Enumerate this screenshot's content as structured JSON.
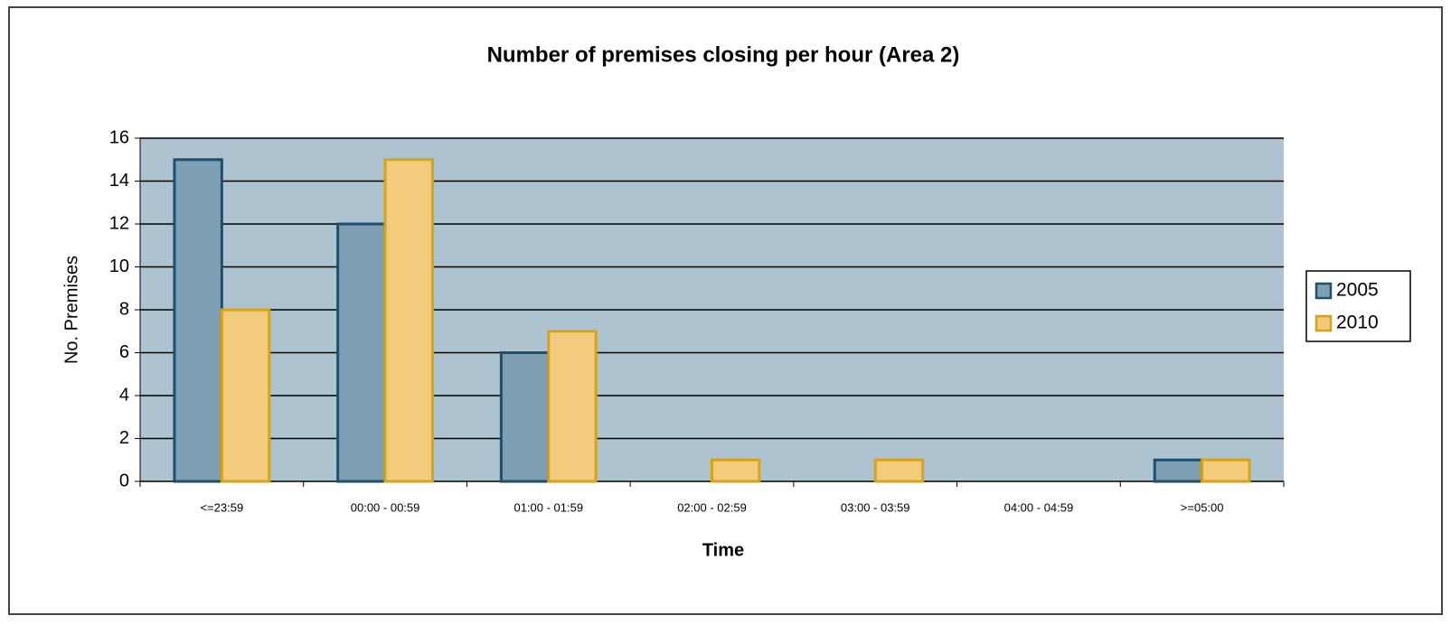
{
  "chart_data": {
    "type": "bar",
    "title": "Number of premises closing per hour (Area 2)",
    "x_label": "Time",
    "y_label": "No. Premises",
    "categories": [
      "<=23:59",
      "00:00 - 00:59",
      "01:00 - 01:59",
      "02:00 - 02:59",
      "03:00 - 03:59",
      "04:00 - 04:59",
      ">=05:00"
    ],
    "series": [
      {
        "name": "2005",
        "color": "#7f9fb3",
        "values": [
          15,
          12,
          6,
          0,
          0,
          0,
          1
        ]
      },
      {
        "name": "2010",
        "color": "#f2cc7c",
        "values": [
          8,
          15,
          7,
          1,
          1,
          0,
          1
        ]
      }
    ],
    "ylim": [
      0,
      16
    ],
    "yticks": [
      0,
      2,
      4,
      6,
      8,
      10,
      12,
      14,
      16
    ],
    "grid": true,
    "legend": "right"
  }
}
